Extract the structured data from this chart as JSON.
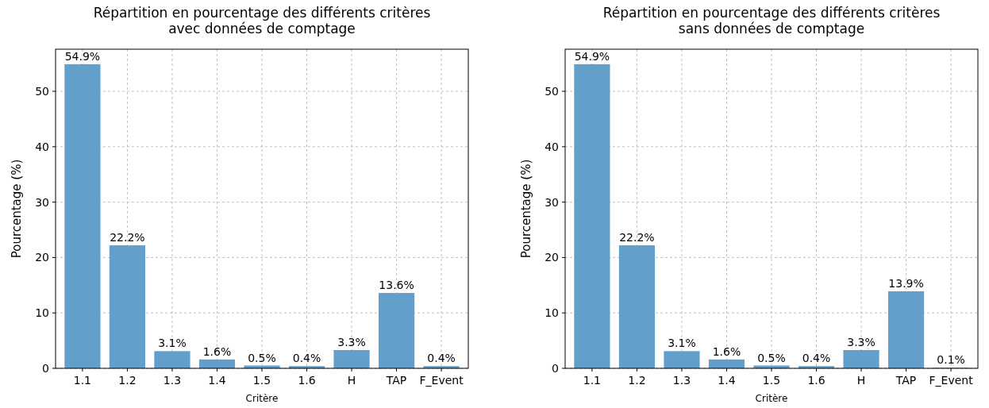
{
  "chart_data": [
    {
      "type": "bar",
      "title": "Répartition en pourcentage des différents critères\navec données de comptage",
      "xlabel": "Critère",
      "ylabel": "Pourcentage (%)",
      "categories": [
        "1.1",
        "1.2",
        "1.3",
        "1.4",
        "1.5",
        "1.6",
        "H",
        "TAP",
        "F_Event"
      ],
      "values": [
        54.9,
        22.2,
        3.1,
        1.6,
        0.5,
        0.4,
        3.3,
        13.6,
        0.4
      ],
      "value_labels": [
        "54.9%",
        "22.2%",
        "3.1%",
        "1.6%",
        "0.5%",
        "0.4%",
        "3.3%",
        "13.6%",
        "0.4%"
      ],
      "color": "#62a0cb",
      "ylim": [
        0,
        57.6
      ],
      "yticks": [
        0,
        10,
        20,
        30,
        40,
        50
      ],
      "grid": true
    },
    {
      "type": "bar",
      "title": "Répartition en pourcentage des différents critères\nsans données de comptage",
      "xlabel": "Critère",
      "ylabel": "Pourcentage (%)",
      "categories": [
        "1.1",
        "1.2",
        "1.3",
        "1.4",
        "1.5",
        "1.6",
        "H",
        "TAP",
        "F_Event"
      ],
      "values": [
        54.9,
        22.2,
        3.1,
        1.6,
        0.5,
        0.4,
        3.3,
        13.9,
        0.1
      ],
      "value_labels": [
        "54.9%",
        "22.2%",
        "3.1%",
        "1.6%",
        "0.5%",
        "0.4%",
        "3.3%",
        "13.9%",
        "0.1%"
      ],
      "color": "#62a0cb",
      "ylim": [
        0,
        57.6
      ],
      "yticks": [
        0,
        10,
        20,
        30,
        40,
        50
      ],
      "grid": true
    }
  ]
}
